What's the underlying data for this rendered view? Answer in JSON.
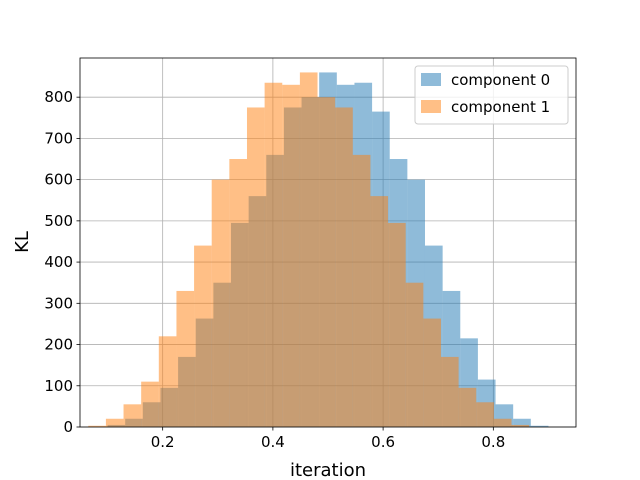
{
  "chart_data": {
    "type": "bar",
    "title": "",
    "xlabel": "iteration",
    "ylabel": "KL",
    "xlim": [
      0.05,
      0.95
    ],
    "ylim": [
      0,
      895
    ],
    "xticks": [
      0.2,
      0.4,
      0.6,
      0.8
    ],
    "xtick_labels": [
      "0.2",
      "0.4",
      "0.6",
      "0.8"
    ],
    "yticks": [
      0,
      100,
      200,
      300,
      400,
      500,
      600,
      700,
      800
    ],
    "ytick_labels": [
      "0",
      "100",
      "200",
      "300",
      "400",
      "500",
      "600",
      "700",
      "800"
    ],
    "grid": true,
    "legend_position": "top-right",
    "series": [
      {
        "name": "component 0",
        "color": "#1f77b4",
        "opacity": 0.5,
        "bins": [
          {
            "x0": 0.1,
            "x1": 0.132,
            "value": 5
          },
          {
            "x0": 0.132,
            "x1": 0.164,
            "value": 20
          },
          {
            "x0": 0.164,
            "x1": 0.196,
            "value": 60
          },
          {
            "x0": 0.196,
            "x1": 0.228,
            "value": 95
          },
          {
            "x0": 0.228,
            "x1": 0.26,
            "value": 170
          },
          {
            "x0": 0.26,
            "x1": 0.292,
            "value": 263
          },
          {
            "x0": 0.292,
            "x1": 0.324,
            "value": 350
          },
          {
            "x0": 0.324,
            "x1": 0.356,
            "value": 495
          },
          {
            "x0": 0.356,
            "x1": 0.388,
            "value": 560
          },
          {
            "x0": 0.388,
            "x1": 0.42,
            "value": 660
          },
          {
            "x0": 0.42,
            "x1": 0.452,
            "value": 775
          },
          {
            "x0": 0.452,
            "x1": 0.484,
            "value": 800
          },
          {
            "x0": 0.484,
            "x1": 0.516,
            "value": 860
          },
          {
            "x0": 0.516,
            "x1": 0.548,
            "value": 830
          },
          {
            "x0": 0.548,
            "x1": 0.58,
            "value": 835
          },
          {
            "x0": 0.58,
            "x1": 0.612,
            "value": 765
          },
          {
            "x0": 0.612,
            "x1": 0.644,
            "value": 650
          },
          {
            "x0": 0.644,
            "x1": 0.676,
            "value": 600
          },
          {
            "x0": 0.676,
            "x1": 0.708,
            "value": 440
          },
          {
            "x0": 0.708,
            "x1": 0.74,
            "value": 330
          },
          {
            "x0": 0.74,
            "x1": 0.772,
            "value": 215
          },
          {
            "x0": 0.772,
            "x1": 0.804,
            "value": 115
          },
          {
            "x0": 0.804,
            "x1": 0.836,
            "value": 55
          },
          {
            "x0": 0.836,
            "x1": 0.868,
            "value": 20
          },
          {
            "x0": 0.868,
            "x1": 0.9,
            "value": 3
          }
        ]
      },
      {
        "name": "component 1",
        "color": "#ff7f0e",
        "opacity": 0.5,
        "bins": [
          {
            "x0": 0.065,
            "x1": 0.097,
            "value": 3
          },
          {
            "x0": 0.097,
            "x1": 0.129,
            "value": 20
          },
          {
            "x0": 0.129,
            "x1": 0.161,
            "value": 55
          },
          {
            "x0": 0.161,
            "x1": 0.193,
            "value": 110
          },
          {
            "x0": 0.193,
            "x1": 0.225,
            "value": 220
          },
          {
            "x0": 0.225,
            "x1": 0.257,
            "value": 330
          },
          {
            "x0": 0.257,
            "x1": 0.289,
            "value": 440
          },
          {
            "x0": 0.289,
            "x1": 0.321,
            "value": 600
          },
          {
            "x0": 0.321,
            "x1": 0.353,
            "value": 650
          },
          {
            "x0": 0.353,
            "x1": 0.385,
            "value": 775
          },
          {
            "x0": 0.385,
            "x1": 0.417,
            "value": 835
          },
          {
            "x0": 0.417,
            "x1": 0.449,
            "value": 830
          },
          {
            "x0": 0.449,
            "x1": 0.481,
            "value": 860
          },
          {
            "x0": 0.481,
            "x1": 0.513,
            "value": 800
          },
          {
            "x0": 0.513,
            "x1": 0.545,
            "value": 775
          },
          {
            "x0": 0.545,
            "x1": 0.577,
            "value": 660
          },
          {
            "x0": 0.577,
            "x1": 0.609,
            "value": 560
          },
          {
            "x0": 0.609,
            "x1": 0.641,
            "value": 495
          },
          {
            "x0": 0.641,
            "x1": 0.673,
            "value": 350
          },
          {
            "x0": 0.673,
            "x1": 0.705,
            "value": 263
          },
          {
            "x0": 0.705,
            "x1": 0.737,
            "value": 170
          },
          {
            "x0": 0.737,
            "x1": 0.769,
            "value": 95
          },
          {
            "x0": 0.769,
            "x1": 0.801,
            "value": 60
          },
          {
            "x0": 0.801,
            "x1": 0.833,
            "value": 20
          },
          {
            "x0": 0.833,
            "x1": 0.865,
            "value": 5
          }
        ]
      }
    ]
  }
}
